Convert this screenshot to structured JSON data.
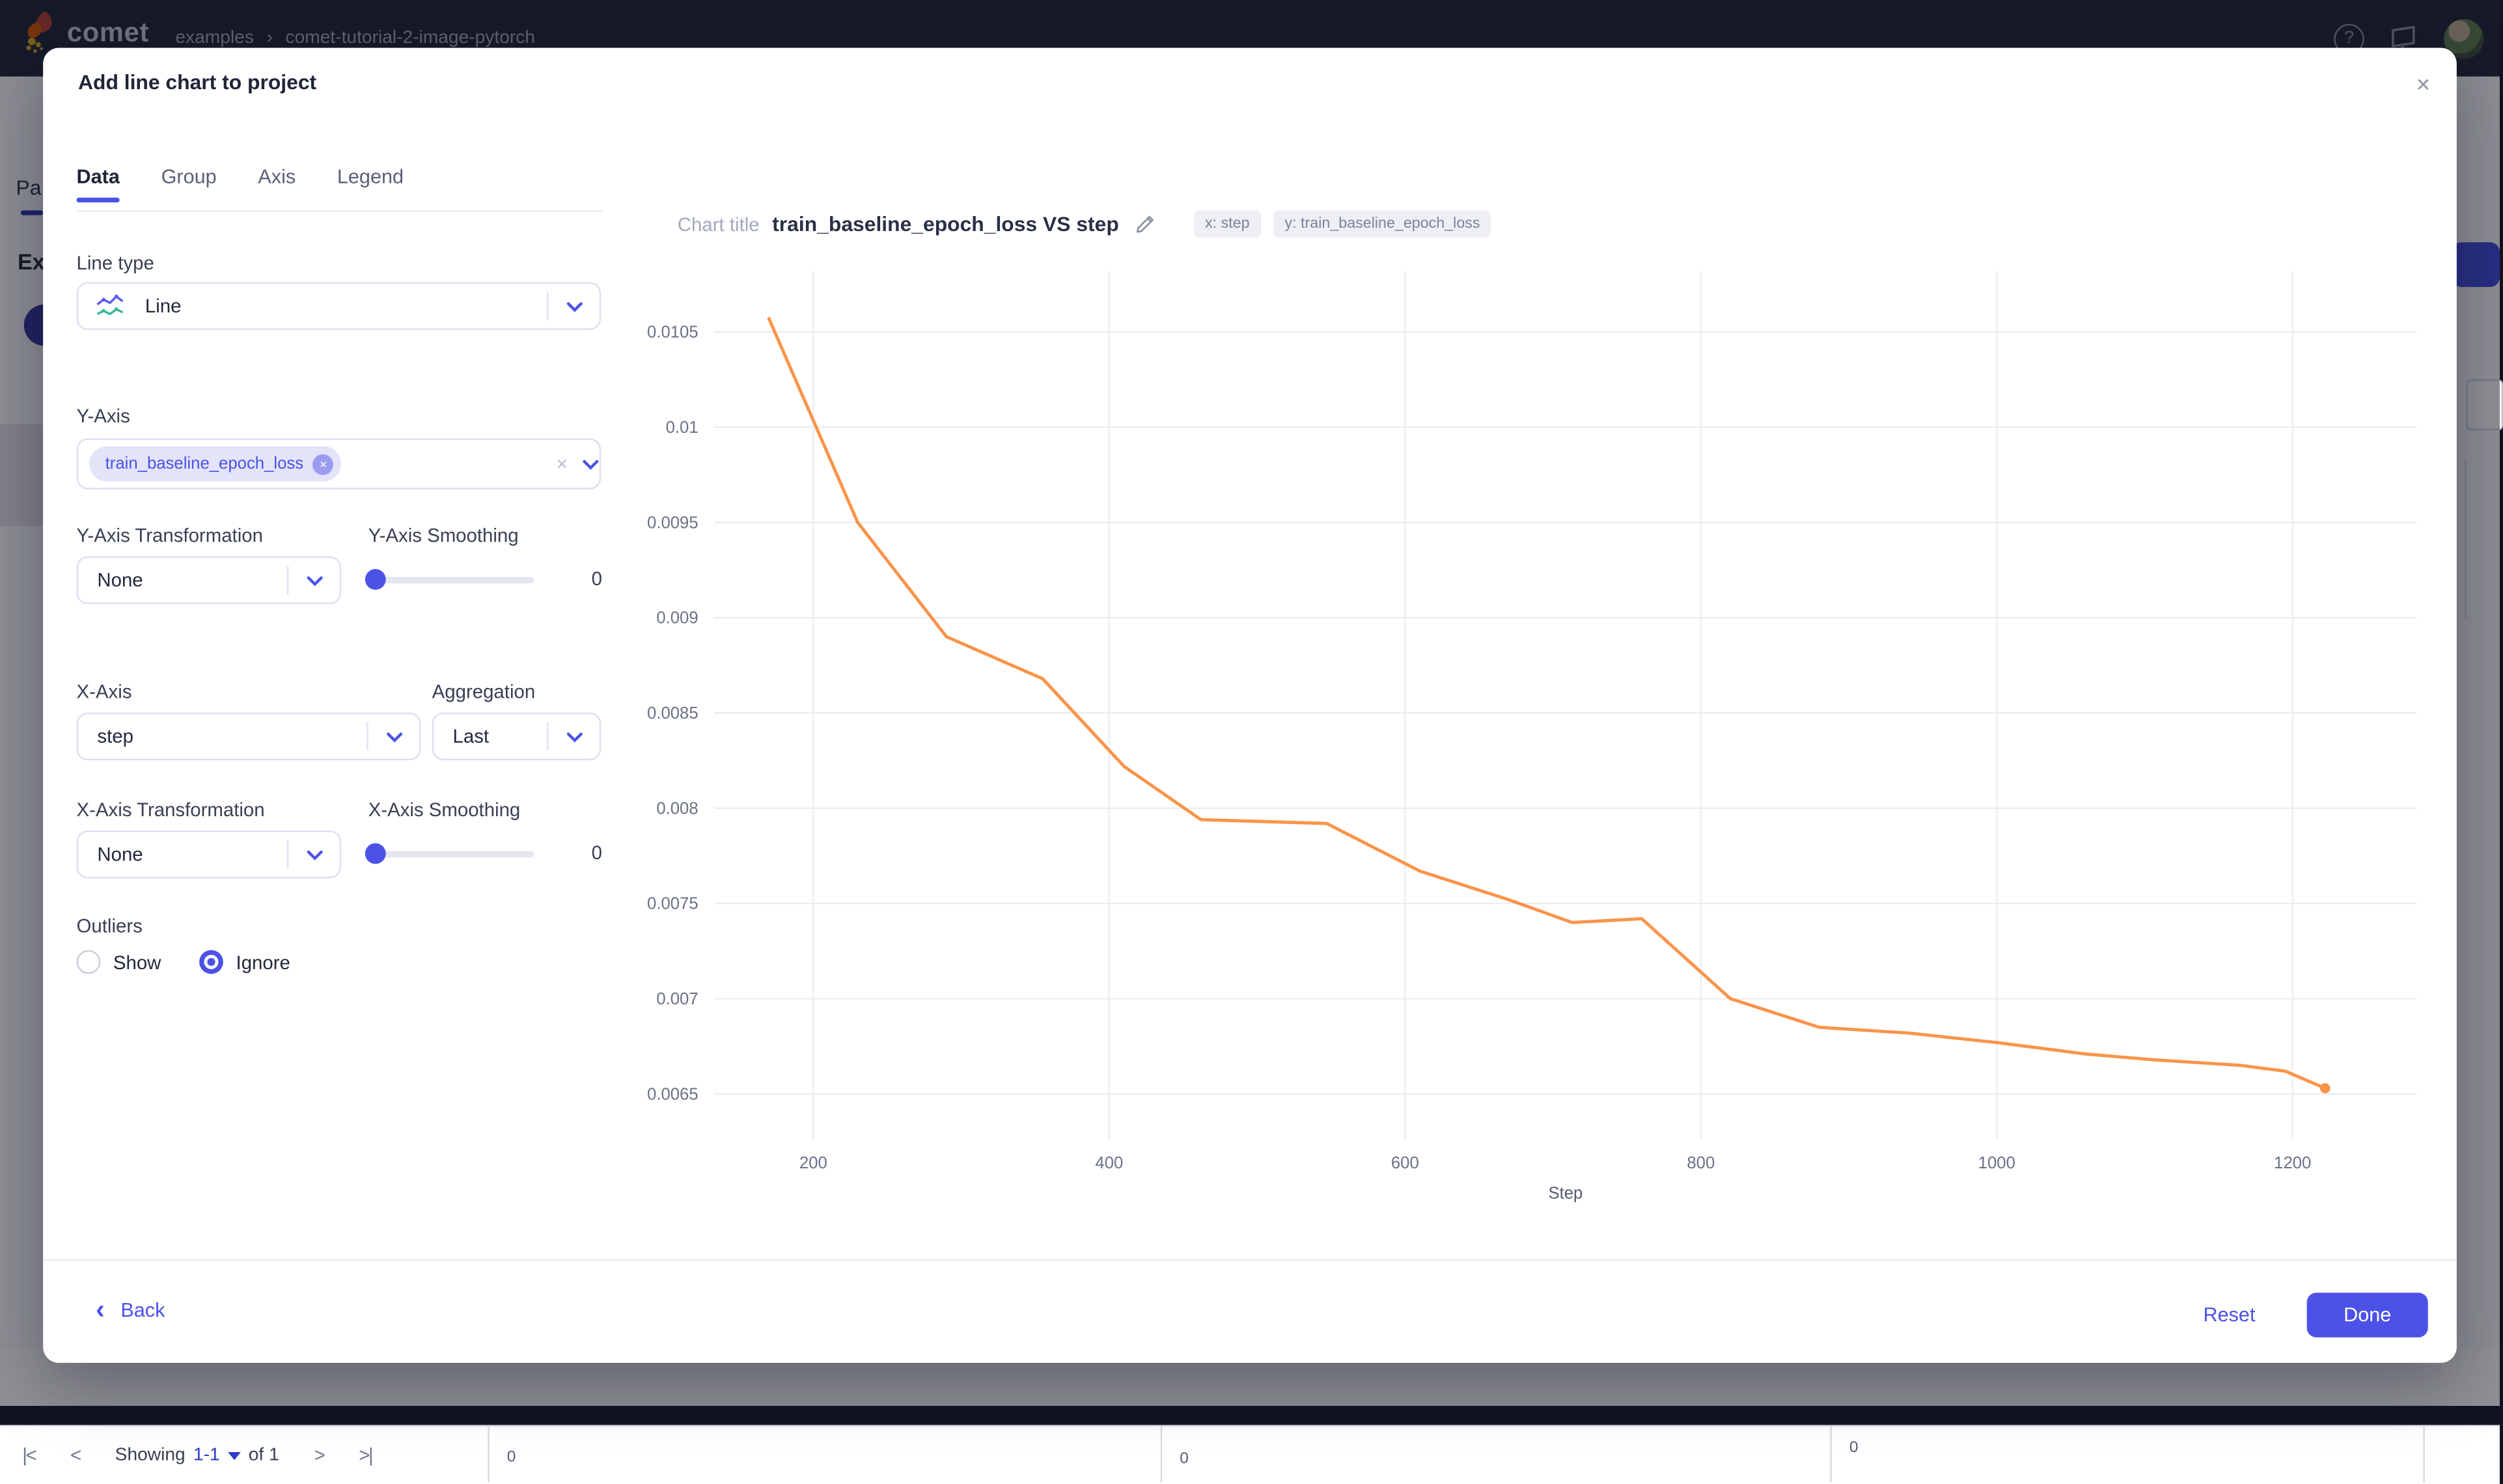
{
  "colors": {
    "accent": "#4c52e8",
    "line": "#f9944a",
    "header_bg": "#1b2134",
    "overlay": "rgba(17,19,30,0.47)"
  },
  "header": {
    "logo_text": "comet",
    "breadcrumb_workspace": "examples",
    "breadcrumb_sep": "›",
    "breadcrumb_project": "comet-tutorial-2-image-pytorch",
    "help_icon": "?"
  },
  "background": {
    "panels_tab_fragment": "Pa",
    "experiments_heading_fragment": "Ex",
    "pagination": {
      "first_icon": "|<",
      "prev_icon": "<",
      "showing": "Showing",
      "range": "1-1",
      "of": "of 1",
      "next_icon": ">",
      "last_icon": ">|"
    },
    "mini_axis_values": [
      "0",
      "0",
      "0"
    ]
  },
  "modal": {
    "title": "Add line chart to project",
    "close_icon": "×",
    "tabs": [
      {
        "label": "Data",
        "active": true
      },
      {
        "label": "Group",
        "active": false
      },
      {
        "label": "Axis",
        "active": false
      },
      {
        "label": "Legend",
        "active": false
      }
    ],
    "line_type_label": "Line type",
    "line_type_value": "Line",
    "y_axis_label": "Y-Axis",
    "y_axis_tag": "train_baseline_epoch_loss",
    "y_axis_tag_remove_icon": "×",
    "y_axis_clear_icon": "×",
    "y_transform_label": "Y-Axis Transformation",
    "y_transform_value": "None",
    "y_smoothing_label": "Y-Axis Smoothing",
    "y_smoothing_value": "0",
    "x_axis_label": "X-Axis",
    "x_axis_value": "step",
    "aggregation_label": "Aggregation",
    "aggregation_value": "Last",
    "x_transform_label": "X-Axis Transformation",
    "x_transform_value": "None",
    "x_smoothing_label": "X-Axis Smoothing",
    "x_smoothing_value": "0",
    "outliers_label": "Outliers",
    "outlier_show": "Show",
    "outlier_ignore": "Ignore",
    "chart_title_label": "Chart title",
    "chart_title_value": "train_baseline_epoch_loss VS step",
    "badge_x": "x: step",
    "badge_y": "y: train_baseline_epoch_loss",
    "back_label": "Back",
    "reset_label": "Reset",
    "done_label": "Done"
  },
  "chart_data": {
    "type": "line",
    "title": "train_baseline_epoch_loss VS step",
    "xlabel": "Step",
    "ylabel": "",
    "grid": true,
    "legend": false,
    "x_ticks": [
      200,
      400,
      600,
      800,
      1000,
      1200
    ],
    "y_ticks": [
      0.0105,
      0.01,
      0.0095,
      0.009,
      0.0085,
      0.008,
      0.0075,
      0.007,
      0.0065
    ],
    "xlim": [
      133,
      1284
    ],
    "ylim": [
      0.00626,
      0.01082
    ],
    "series": [
      {
        "name": "train_baseline_epoch_loss",
        "color": "#f9944a",
        "x": [
          170,
          230,
          290,
          355,
          410,
          462,
          547,
          610,
          670,
          713,
          760,
          820,
          880,
          940,
          1000,
          1060,
          1105,
          1165,
          1195,
          1222
        ],
        "y": [
          0.01057,
          0.0095,
          0.0089,
          0.00868,
          0.00822,
          0.00794,
          0.00792,
          0.00767,
          0.00752,
          0.0074,
          0.00742,
          0.007,
          0.00685,
          0.00682,
          0.00677,
          0.00671,
          0.00668,
          0.00665,
          0.00662,
          0.00653
        ]
      }
    ]
  }
}
